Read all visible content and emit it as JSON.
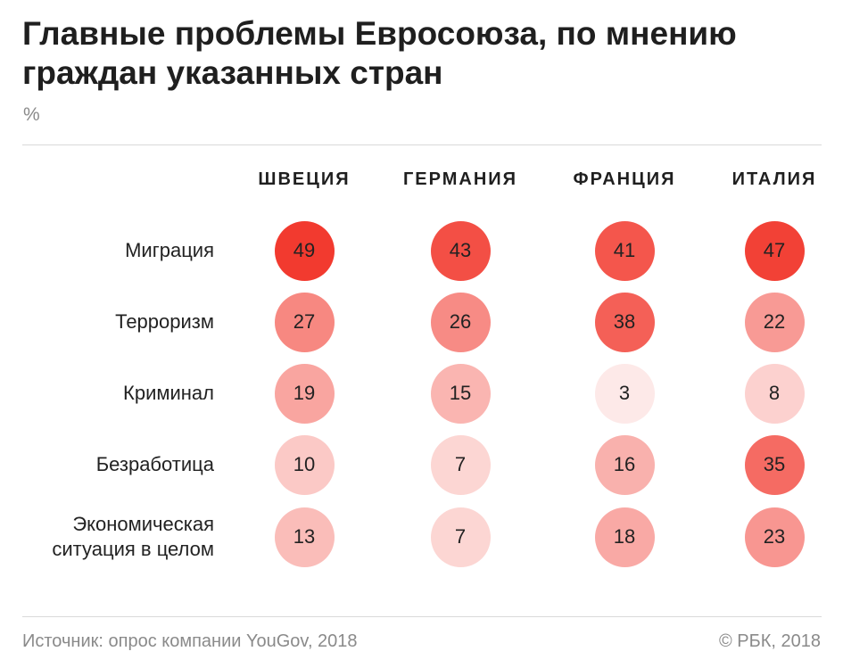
{
  "title": "Главные проблемы Евросоюза, по мнению граждан указанных стран",
  "unit": "%",
  "footer": {
    "source": "Источник: опрос компании YouGov, 2018",
    "credit": "© РБК, 2018"
  },
  "colors": {
    "max": "#f23a2f",
    "min": "#fde9e8"
  },
  "chart_data": {
    "type": "heatmap",
    "title": "Главные проблемы Евросоюза, по мнению граждан указанных стран",
    "unit": "%",
    "columns": [
      "ШВЕЦИЯ",
      "ГЕРМАНИЯ",
      "ФРАНЦИЯ",
      "ИТАЛИЯ"
    ],
    "rows": [
      {
        "label": [
          "Миграция"
        ],
        "values": [
          49,
          43,
          41,
          47
        ]
      },
      {
        "label": [
          "Терроризм"
        ],
        "values": [
          27,
          26,
          38,
          22
        ]
      },
      {
        "label": [
          "Криминал"
        ],
        "values": [
          19,
          15,
          3,
          8
        ]
      },
      {
        "label": [
          "Безработица"
        ],
        "values": [
          10,
          7,
          16,
          35
        ]
      },
      {
        "label": [
          "Экономическая",
          "ситуация в целом"
        ],
        "values": [
          13,
          7,
          18,
          23
        ]
      }
    ]
  }
}
